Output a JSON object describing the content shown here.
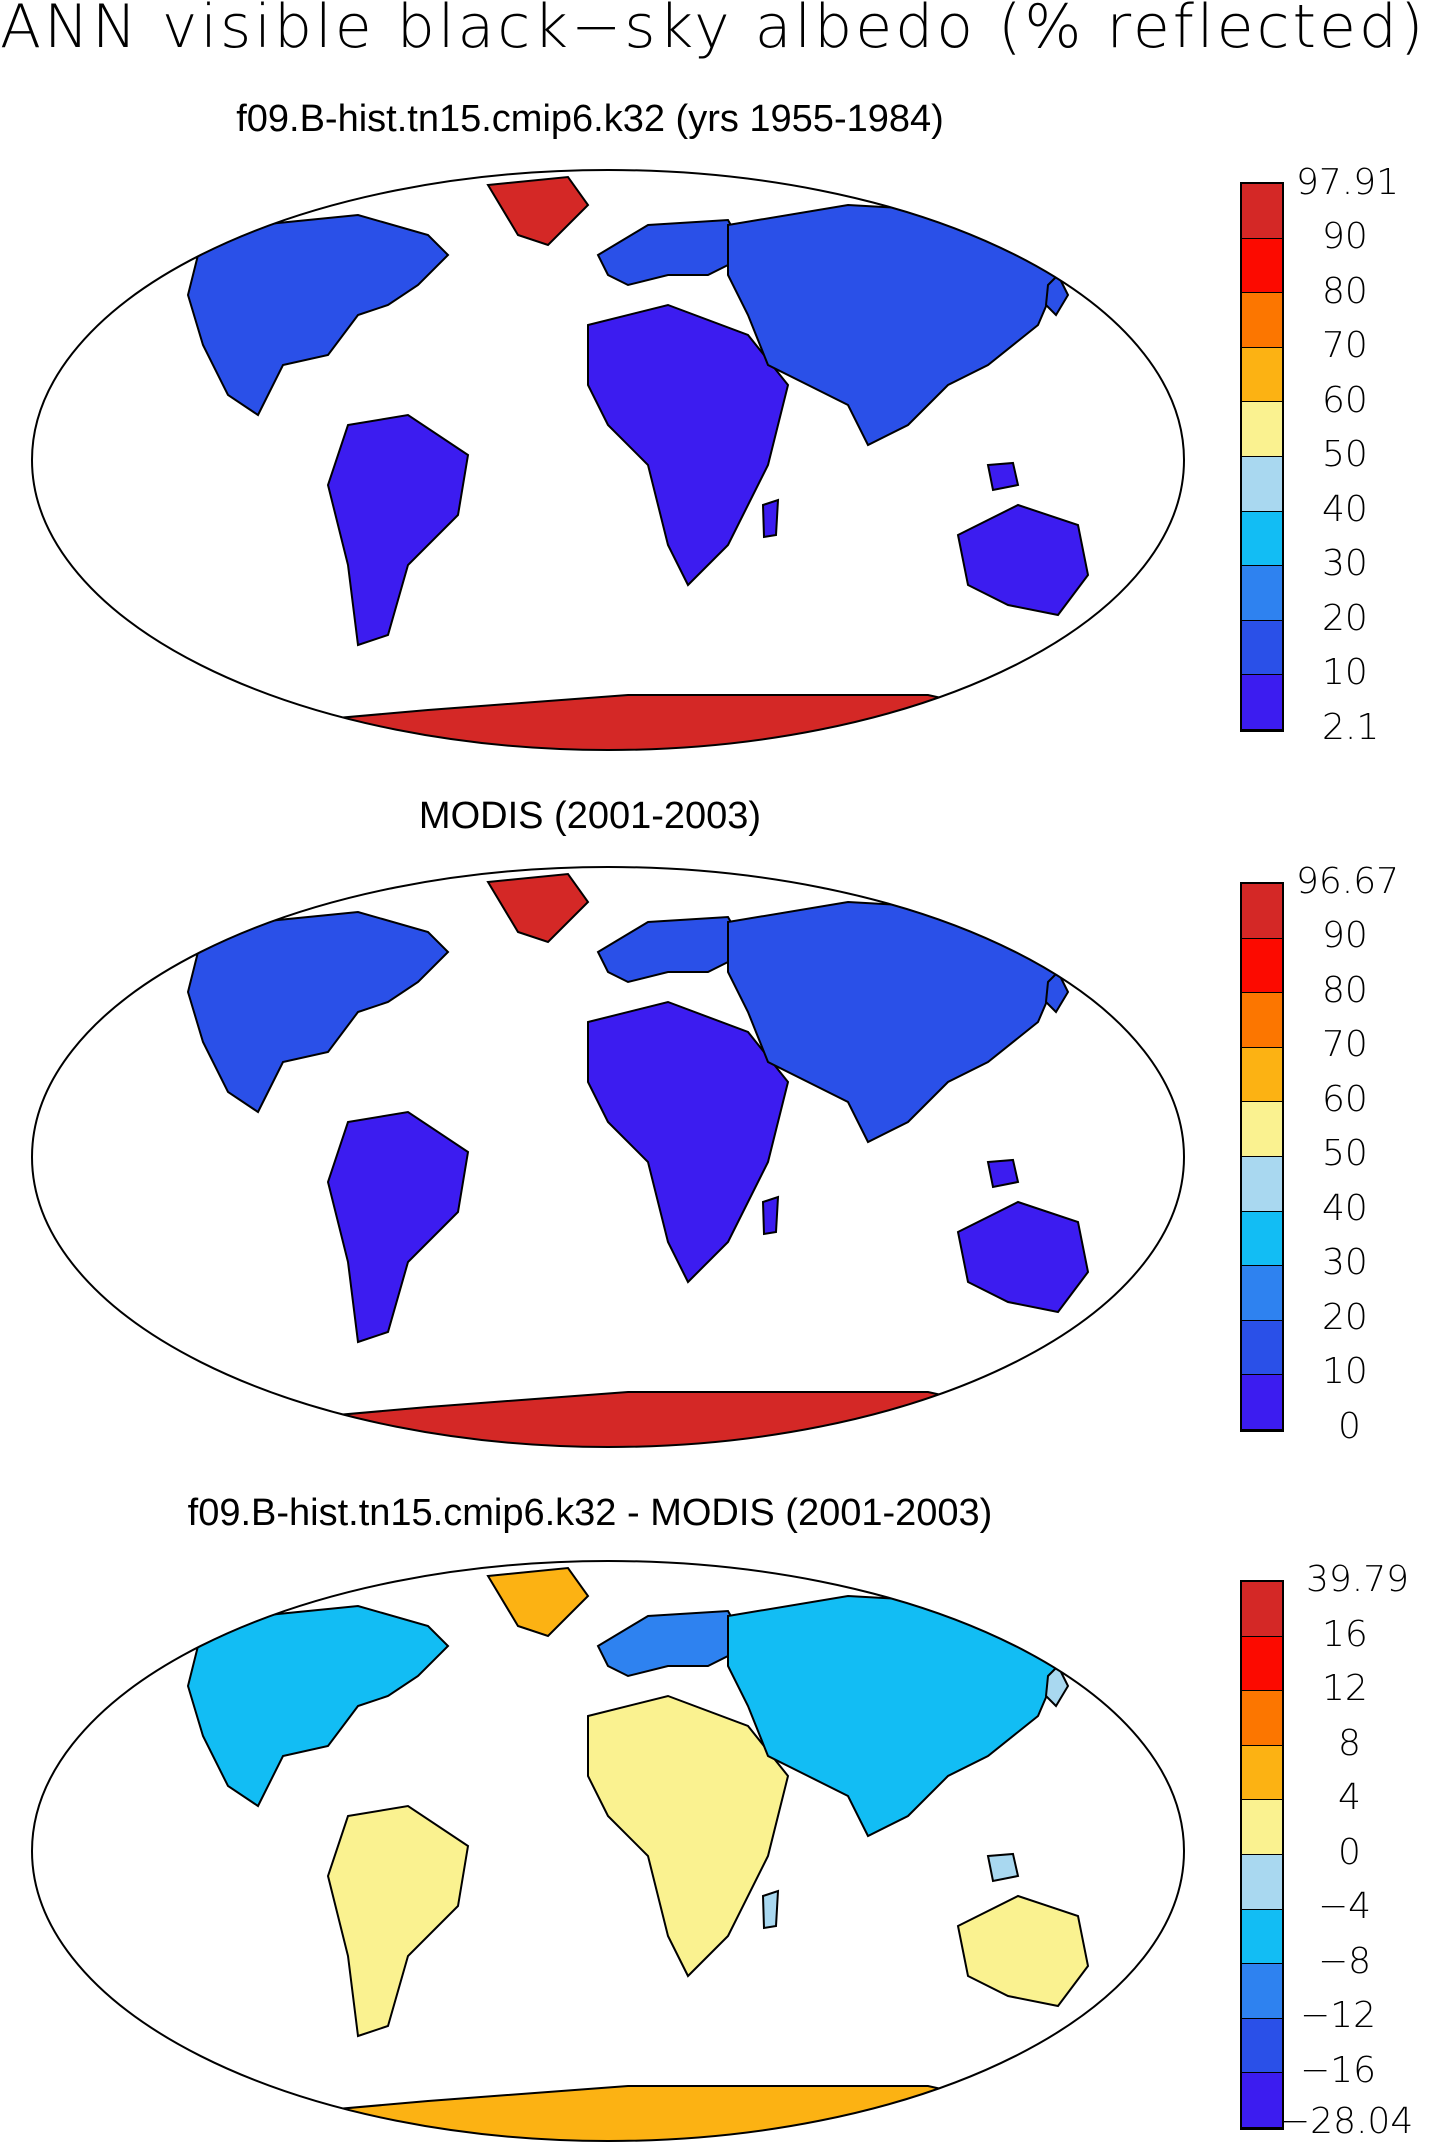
{
  "title": "ANN visible black−sky albedo (% reflected)",
  "colors": {
    "abs_scale": [
      "#3c1cf0",
      "#2a50e8",
      "#2e82f0",
      "#12bdf4",
      "#a9d8f0",
      "#faf290",
      "#fcb213",
      "#fc7600",
      "#fc0a00",
      "#d42826"
    ],
    "diff_scale": [
      "#3c1cf0",
      "#2a50e8",
      "#2e82f0",
      "#12bdf4",
      "#a9d8f0",
      "#faf290",
      "#fcb213",
      "#fc7600",
      "#fc0a00",
      "#d42826"
    ],
    "ocean": "#ffffff",
    "coast": "#000000"
  },
  "panels": [
    {
      "title": "f09.B-hist.tn15.cmip6.k32 (yrs 1955-1984)",
      "colorbar_labels": [
        "97.91",
        "90",
        "80",
        "70",
        "60",
        "50",
        "40",
        "30",
        "20",
        "10",
        "2.1"
      ]
    },
    {
      "title": "MODIS (2001-2003)",
      "colorbar_labels": [
        "96.67",
        "90",
        "80",
        "70",
        "60",
        "50",
        "40",
        "30",
        "20",
        "10",
        "0"
      ]
    },
    {
      "title": "f09.B-hist.tn15.cmip6.k32 - MODIS (2001-2003)",
      "colorbar_labels": [
        "39.79",
        "16",
        "12",
        "8",
        "4",
        "0",
        "−4",
        "−8",
        "−12",
        "−16",
        "−28.04"
      ]
    }
  ]
}
